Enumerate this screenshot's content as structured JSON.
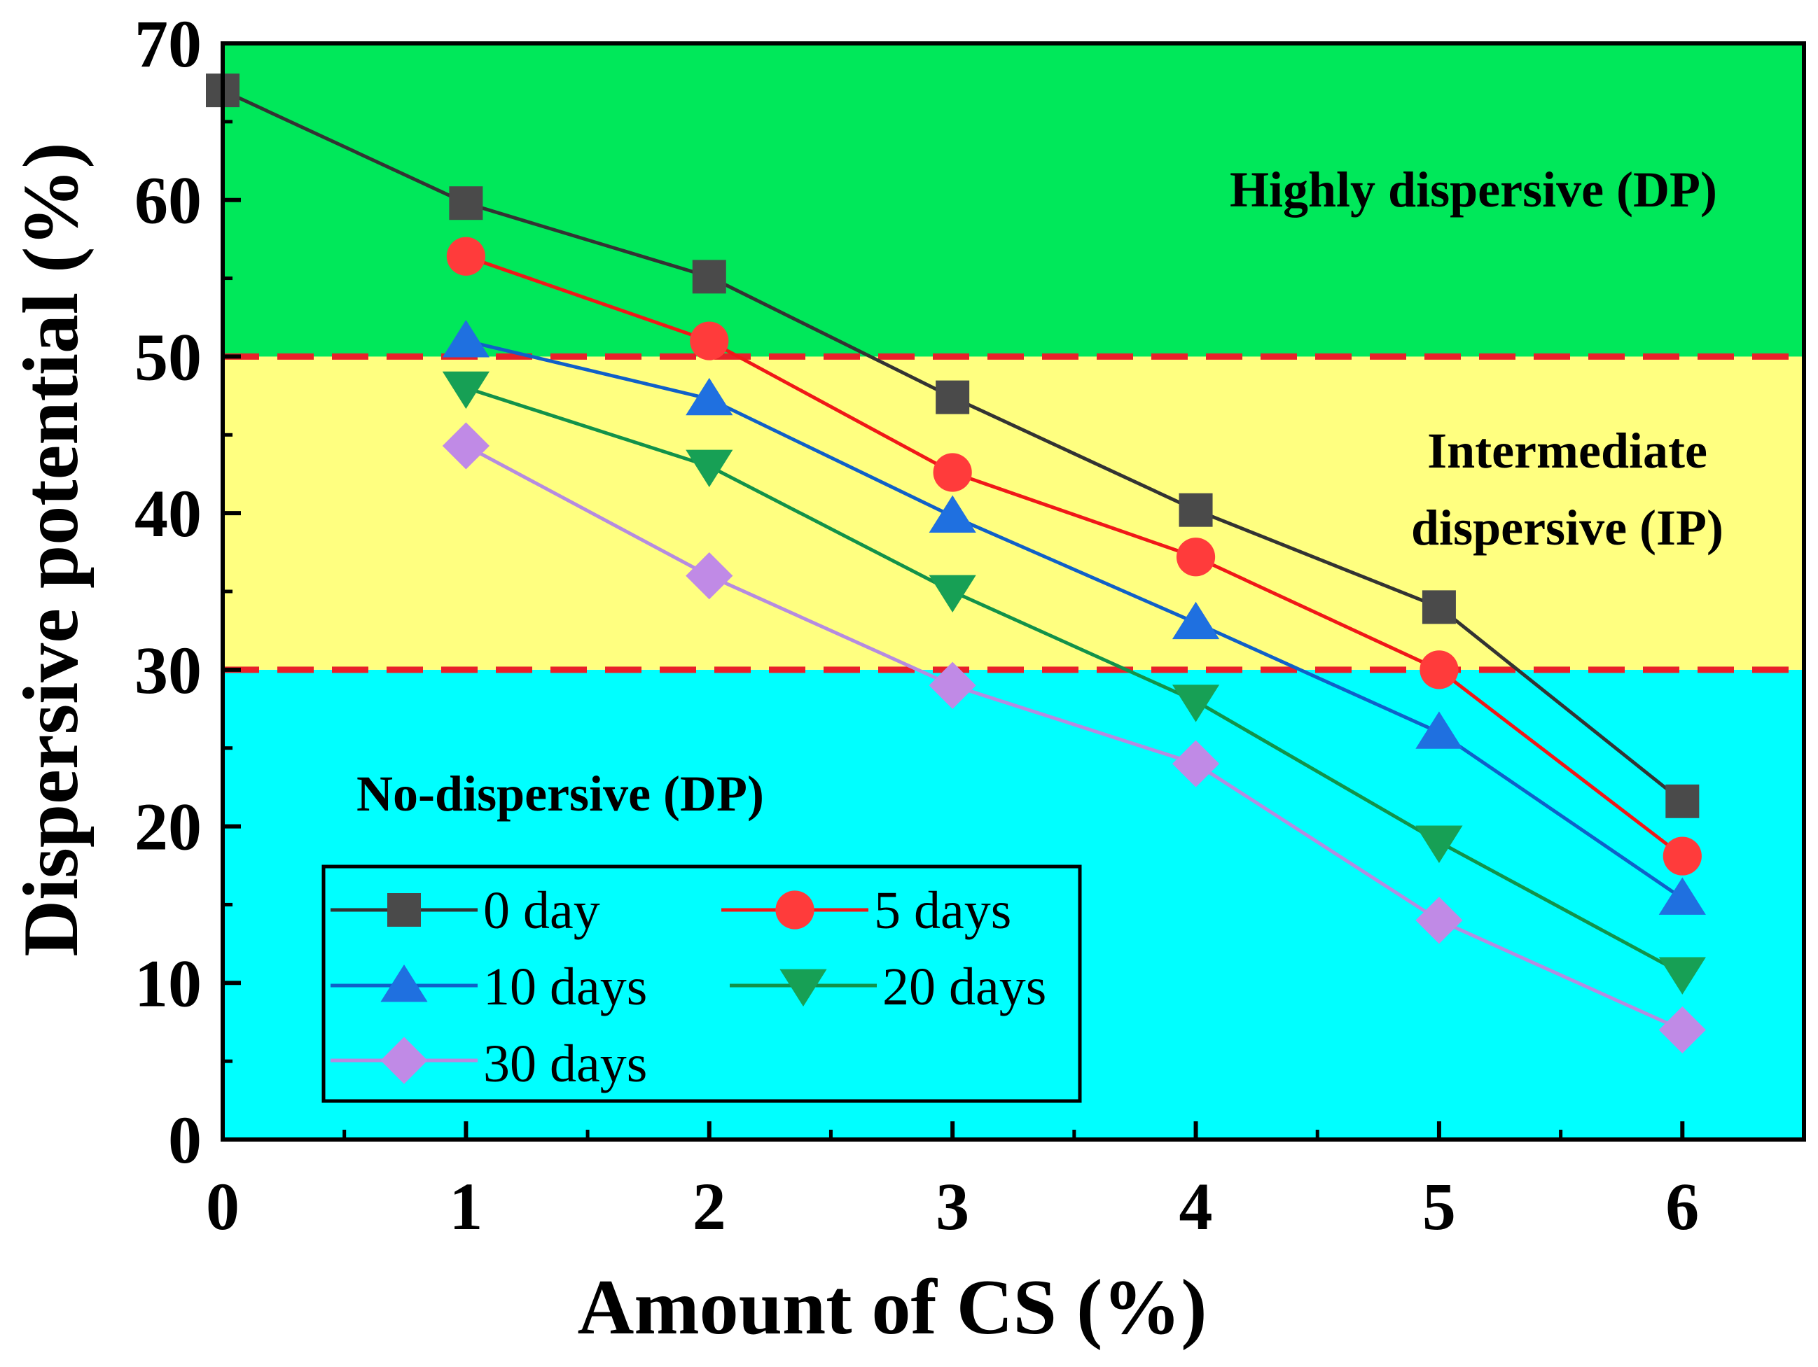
{
  "chart_data": {
    "type": "line",
    "xlabel": "Amount of CS (%)",
    "ylabel": "Dispersive potential (%)",
    "xlim": [
      0,
      6.5
    ],
    "ylim": [
      0,
      70
    ],
    "x_ticks": [
      0,
      1,
      2,
      3,
      4,
      5,
      6
    ],
    "y_ticks": [
      0,
      10,
      20,
      30,
      40,
      50,
      60,
      70
    ],
    "zones": [
      {
        "label": "No-dispersive (DP)",
        "from": 0,
        "to": 30,
        "color": "#00FFFF"
      },
      {
        "label": "Intermediate dispersive (IP)",
        "label_lines": [
          "Intermediate",
          "dispersive (IP)"
        ],
        "from": 30,
        "to": 50,
        "color": "#FFFF80"
      },
      {
        "label": "Highly dispersive (DP)",
        "from": 50,
        "to": 70,
        "color": "#00E85A"
      }
    ],
    "threshold_lines": {
      "values": [
        30,
        50
      ],
      "color": "#E8202A",
      "style": "dashed"
    },
    "legend_position": "bottom-left",
    "series": [
      {
        "name": "0 day",
        "marker": "square",
        "color": "#333333",
        "marker_color": "#4A4A4A",
        "x": [
          0,
          1,
          2,
          3,
          4,
          5,
          6
        ],
        "values": [
          67,
          59.8,
          55.1,
          47.4,
          40.2,
          34,
          21.6
        ]
      },
      {
        "name": "5 days",
        "marker": "circle",
        "color": "#F01818",
        "marker_color": "#FF3B3B",
        "x": [
          1,
          2,
          3,
          4,
          5,
          6
        ],
        "values": [
          56.4,
          51,
          42.6,
          37.2,
          30,
          18.1
        ]
      },
      {
        "name": "10 days",
        "marker": "triangle-up",
        "color": "#1060C8",
        "marker_color": "#1F70E0",
        "x": [
          1,
          2,
          3,
          4,
          5,
          6
        ],
        "values": [
          51,
          47.3,
          39.8,
          33,
          26,
          15.4
        ]
      },
      {
        "name": "20 days",
        "marker": "triangle-down",
        "color": "#12924A",
        "marker_color": "#17A055",
        "x": [
          1,
          2,
          3,
          4,
          5,
          6
        ],
        "values": [
          48,
          43,
          35,
          28,
          19,
          10.6
        ]
      },
      {
        "name": "30 days",
        "marker": "diamond",
        "color": "#B58BE0",
        "marker_color": "#C08AE6",
        "x": [
          1,
          2,
          3,
          4,
          5,
          6
        ],
        "values": [
          44.3,
          36,
          29,
          24,
          14,
          7
        ]
      }
    ]
  }
}
